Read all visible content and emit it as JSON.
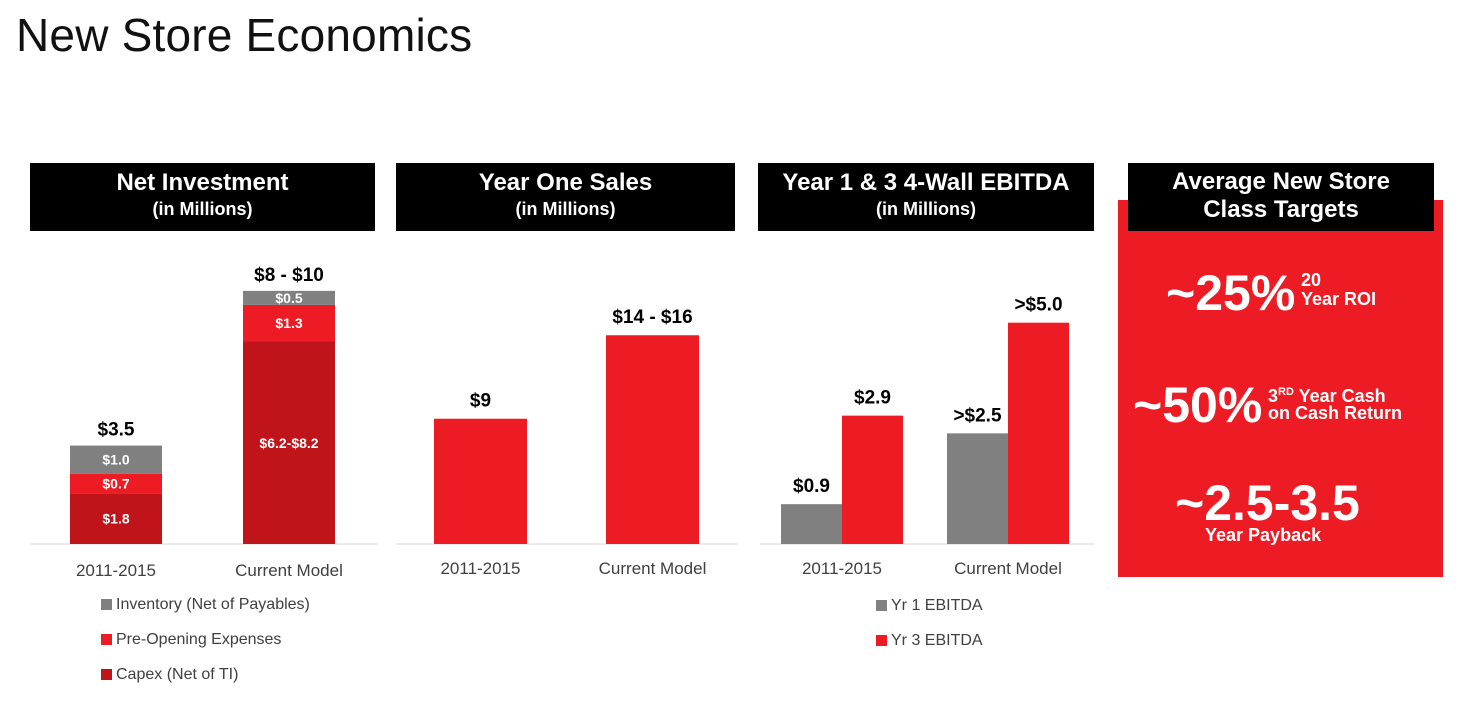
{
  "page": {
    "title": "New Store Economics"
  },
  "colors": {
    "capex": "#c0141b",
    "preopen": "#ed1c24",
    "inventory": "#808080",
    "yr1": "#808080",
    "yr3": "#ed1c24",
    "target_bg": "#ed1c24"
  },
  "panels": {
    "net_investment": {
      "title": "Net Investment",
      "subtitle": "(in Millions)"
    },
    "year_one_sales": {
      "title": "Year One Sales",
      "subtitle": "(in Millions)"
    },
    "ebitda": {
      "title": "Year 1 & 3 4-Wall EBITDA",
      "subtitle": "(in Millions)"
    }
  },
  "chart_data": [
    {
      "type": "bar",
      "stacked": true,
      "title": "Net Investment (in Millions)",
      "categories": [
        "2011-2015",
        "Current Model"
      ],
      "series": [
        {
          "name": "Capex (Net of TI)",
          "values": [
            1.8,
            7.2
          ],
          "labels": [
            "$1.8",
            "$6.2-$8.2"
          ]
        },
        {
          "name": "Pre-Opening Expenses",
          "values": [
            0.7,
            1.3
          ],
          "labels": [
            "$0.7",
            "$1.3"
          ]
        },
        {
          "name": "Inventory (Net of Payables)",
          "values": [
            1.0,
            0.5
          ],
          "labels": [
            "$1.0",
            "$0.5"
          ]
        }
      ],
      "totals": [
        "$3.5",
        "$8 - $10"
      ],
      "ylim": [
        0,
        9.6
      ],
      "legend": "bottom"
    },
    {
      "type": "bar",
      "title": "Year One Sales (in Millions)",
      "categories": [
        "2011-2015",
        "Current Model"
      ],
      "values": [
        9,
        15
      ],
      "labels": [
        "$9",
        "$14 - $16"
      ],
      "ylim": [
        0,
        19.4
      ]
    },
    {
      "type": "bar",
      "title": "Year 1 & 3 4-Wall EBITDA (in Millions)",
      "categories": [
        "2011-2015",
        "Current Model"
      ],
      "series": [
        {
          "name": "Yr 1 EBITDA",
          "values": [
            0.9,
            2.5
          ],
          "labels": [
            "$0.9",
            ">$2.5"
          ]
        },
        {
          "name": "Yr 3 EBITDA",
          "values": [
            2.9,
            5.0
          ],
          "labels": [
            "$2.9",
            ">$5.0"
          ]
        }
      ],
      "ylim": [
        0,
        6.1
      ],
      "legend": "bottom"
    }
  ],
  "targets": {
    "title_line1": "Average New Store",
    "title_line2": "Class Targets",
    "roi": {
      "value": "~25%",
      "line1": "20",
      "line2": "Year ROI"
    },
    "cash": {
      "value": "~50%",
      "line1": "3",
      "sup": "RD",
      "line1b": " Year Cash",
      "line2": "on Cash Return"
    },
    "payback": {
      "value": "~2.5-3.5",
      "line2": "Year Payback"
    }
  }
}
